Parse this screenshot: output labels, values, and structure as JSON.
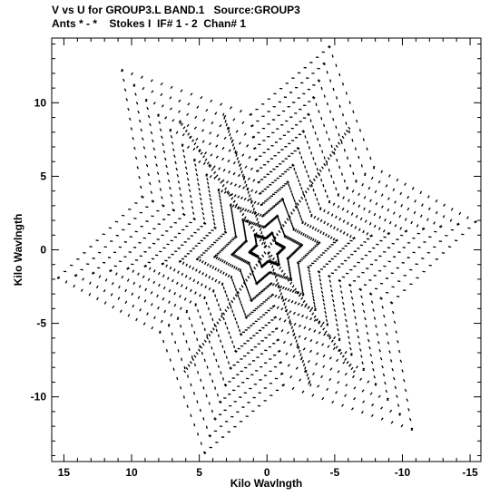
{
  "header": {
    "line1": "V vs U for GROUP3.L BAND.1   Source:GROUP3",
    "line2": "Ants * - *    Stokes I  IF# 1 - 2  Chan# 1"
  },
  "chart_data": {
    "type": "scatter",
    "title": "V vs U for GROUP3.L BAND.1   Source:GROUP3",
    "subtitle": "Ants * - *    Stokes I  IF# 1 - 2  Chan# 1",
    "xlabel": "Kilo Wavlngth",
    "ylabel": "Kilo Wavlngth",
    "xlim": [
      15.9,
      -15.8
    ],
    "ylim": [
      -14.4,
      14.4
    ],
    "x_ticks": [
      15,
      10,
      5,
      0,
      -5,
      -10,
      -15
    ],
    "x_tick_labels": [
      "15",
      "10",
      "5",
      "0",
      "-5",
      "-10",
      "-15"
    ],
    "y_ticks": [
      10,
      5,
      0,
      -5,
      -10
    ],
    "y_tick_labels": [
      "10",
      "5",
      "0",
      "-5",
      "-10"
    ],
    "grid": false,
    "marker_color": "#000000",
    "description_of_points": "uv-coverage tracks forming a six-pointed star; points approximated",
    "arms": [
      {
        "u": 10.7,
        "v": 12.2
      },
      {
        "u": -4.6,
        "v": 13.8
      },
      {
        "u": -15.4,
        "v": 1.9
      },
      {
        "u": -10.7,
        "v": -12.2
      },
      {
        "u": 4.6,
        "v": -13.8
      },
      {
        "u": 15.4,
        "v": -1.9
      }
    ],
    "inner_vertices": [
      {
        "u": 1.2,
        "v": 9.2
      },
      {
        "u": -7.9,
        "v": 5.6
      },
      {
        "u": -9.2,
        "v": -3.6
      },
      {
        "u": -1.2,
        "v": -9.2
      },
      {
        "u": 7.9,
        "v": -5.6
      },
      {
        "u": 9.2,
        "v": 3.6
      }
    ]
  }
}
